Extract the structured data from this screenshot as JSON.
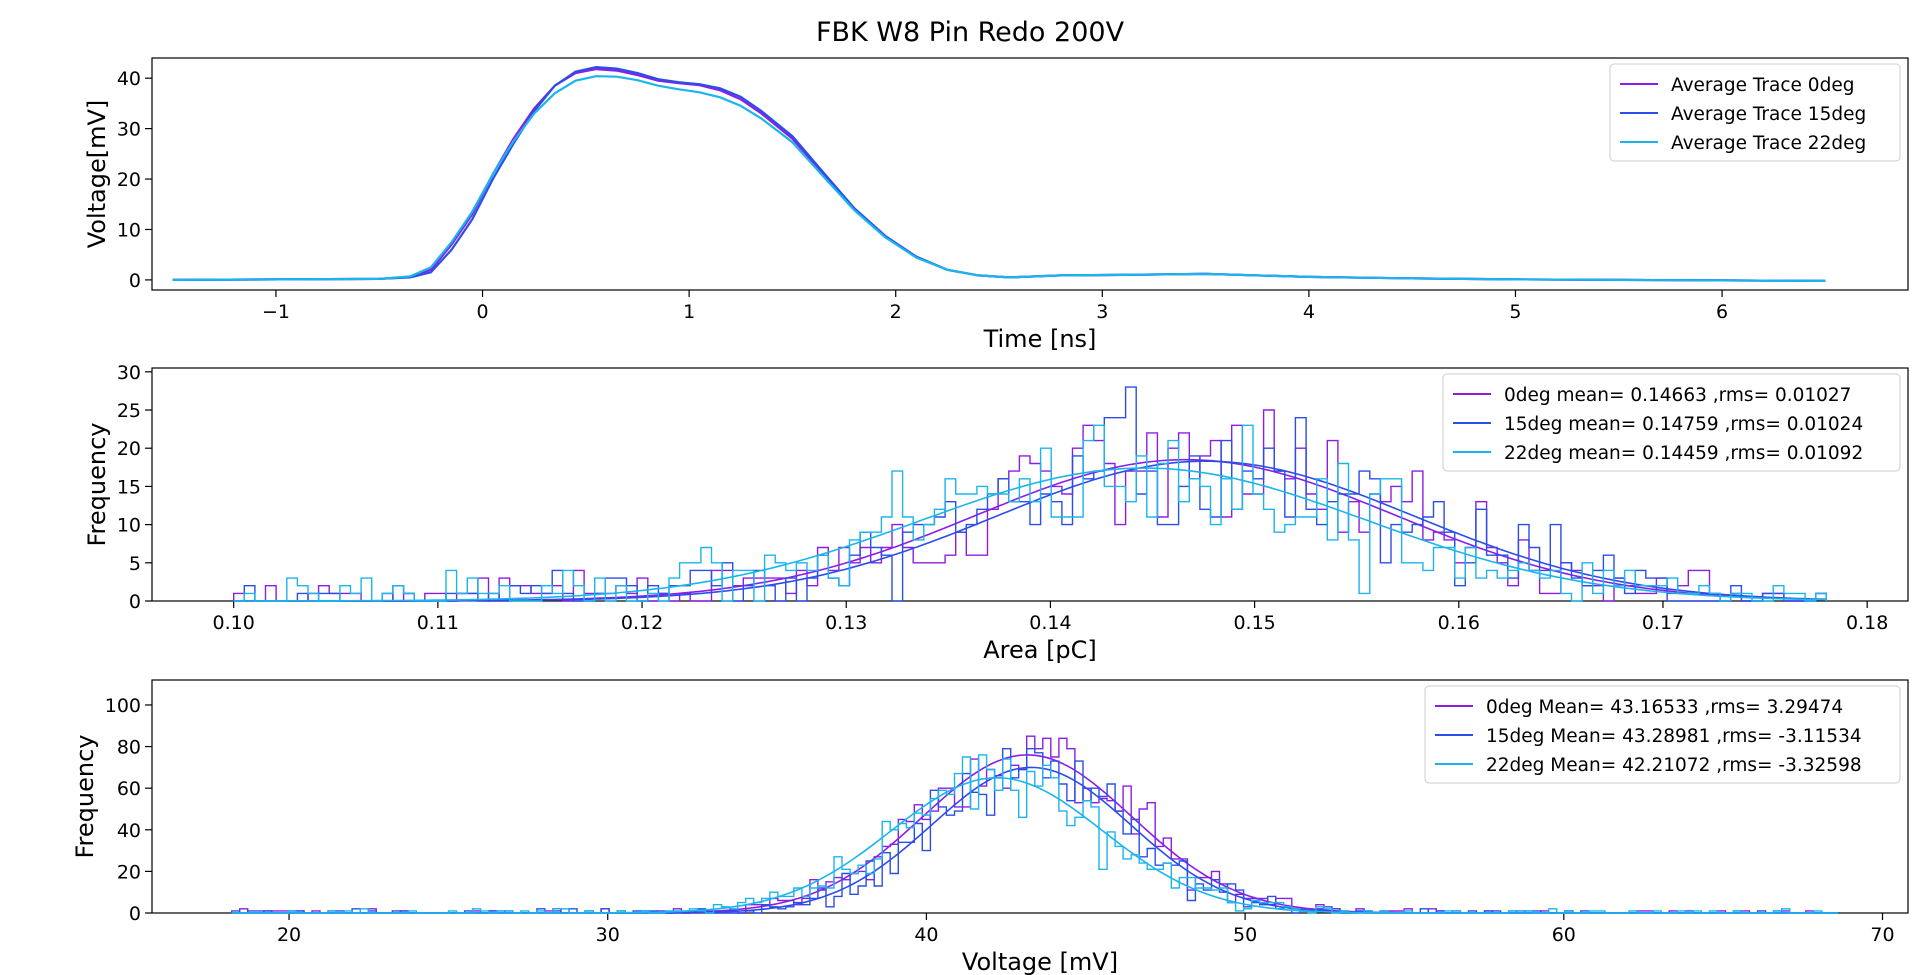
{
  "figure": {
    "title": "FBK W8 Pin Redo 200V"
  },
  "chart_data": [
    {
      "type": "line",
      "xlabel": "Time [ns]",
      "ylabel": "Voltage[mV]",
      "xlim": [
        -1.6,
        6.9
      ],
      "ylim": [
        -2,
        44
      ],
      "xticks": [
        -1,
        0,
        1,
        2,
        3,
        4,
        5,
        6
      ],
      "xtick_labels": [
        "−1",
        "0",
        "1",
        "2",
        "3",
        "4",
        "5",
        "6"
      ],
      "yticks": [
        0,
        10,
        20,
        30,
        40
      ],
      "ytick_labels": [
        "0",
        "10",
        "20",
        "30",
        "40"
      ],
      "legend": "top-right",
      "series": [
        {
          "name": "Average Trace 0deg",
          "color": "#8b1ee6",
          "x": [
            -1.5,
            -0.5,
            -0.35,
            -0.25,
            -0.15,
            -0.05,
            0.05,
            0.15,
            0.25,
            0.35,
            0.45,
            0.55,
            0.65,
            0.75,
            0.85,
            0.95,
            1.05,
            1.15,
            1.25,
            1.35,
            1.5,
            1.65,
            1.8,
            1.95,
            2.1,
            2.25,
            2.4,
            2.55,
            2.8,
            3.1,
            3.5,
            4.0,
            4.5,
            5.0,
            5.5,
            6.0,
            6.5
          ],
          "y": [
            0,
            0.2,
            0.6,
            2,
            7,
            13,
            21,
            28,
            34,
            38.5,
            41,
            41.8,
            41.5,
            40.6,
            39.5,
            39,
            38.6,
            37.6,
            35.8,
            33,
            28,
            21,
            14,
            8.5,
            4.5,
            2,
            0.9,
            0.5,
            0.9,
            1,
            1.2,
            0.6,
            0.3,
            0.1,
            0,
            -0.1,
            -0.2
          ]
        },
        {
          "name": "Average Trace 15deg",
          "color": "#2b4ee8",
          "x": [
            -1.5,
            -0.5,
            -0.35,
            -0.25,
            -0.15,
            -0.05,
            0.05,
            0.15,
            0.25,
            0.35,
            0.45,
            0.55,
            0.65,
            0.75,
            0.85,
            0.95,
            1.05,
            1.15,
            1.25,
            1.35,
            1.5,
            1.65,
            1.8,
            1.95,
            2.1,
            2.25,
            2.4,
            2.55,
            2.8,
            3.1,
            3.5,
            4.0,
            4.5,
            5.0,
            5.5,
            6.0,
            6.5
          ],
          "y": [
            0,
            0.2,
            0.5,
            1.5,
            6,
            12,
            20,
            27,
            33.5,
            38.5,
            41.3,
            42.2,
            41.9,
            41,
            39.8,
            39.2,
            38.8,
            38,
            36.3,
            33.5,
            28.5,
            21.3,
            14.2,
            8.7,
            4.6,
            2,
            0.9,
            0.5,
            0.9,
            1,
            1.2,
            0.6,
            0.3,
            0.1,
            0,
            -0.1,
            -0.2
          ]
        },
        {
          "name": "Average Trace 22deg",
          "color": "#1bb5ec",
          "x": [
            -1.5,
            -0.5,
            -0.35,
            -0.25,
            -0.15,
            -0.05,
            0.05,
            0.15,
            0.25,
            0.35,
            0.45,
            0.55,
            0.65,
            0.75,
            0.85,
            0.95,
            1.05,
            1.15,
            1.25,
            1.35,
            1.5,
            1.65,
            1.8,
            1.95,
            2.1,
            2.25,
            2.4,
            2.55,
            2.8,
            3.1,
            3.5,
            4.0,
            4.5,
            5.0,
            5.5,
            6.0,
            6.5
          ],
          "y": [
            0,
            0.2,
            0.7,
            2.5,
            7.5,
            13.5,
            21,
            27.5,
            33,
            37,
            39.5,
            40.4,
            40.3,
            39.6,
            38.5,
            37.8,
            37.2,
            36.2,
            34.5,
            32,
            27.3,
            20.5,
            13.8,
            8.4,
            4.4,
            2,
            0.9,
            0.5,
            0.9,
            1,
            1.2,
            0.6,
            0.3,
            0.1,
            0,
            -0.1,
            -0.2
          ]
        }
      ]
    },
    {
      "type": "histogram",
      "xlabel": "Area [pC]",
      "ylabel": "Frequency",
      "xlim": [
        0.096,
        0.182
      ],
      "ylim": [
        0,
        30.5
      ],
      "xticks": [
        0.1,
        0.11,
        0.12,
        0.13,
        0.14,
        0.15,
        0.16,
        0.17,
        0.18
      ],
      "xtick_labels": [
        "0.10",
        "0.11",
        "0.12",
        "0.13",
        "0.14",
        "0.15",
        "0.16",
        "0.17",
        "0.18"
      ],
      "yticks": [
        0,
        5,
        10,
        15,
        20,
        25,
        30
      ],
      "ytick_labels": [
        "0",
        "5",
        "10",
        "15",
        "20",
        "25",
        "30"
      ],
      "legend": "top-right",
      "bins": {
        "start": 0.1,
        "end": 0.178,
        "count": 150
      },
      "series": [
        {
          "name": "0deg mean= 0.14663 ,rms= 0.01027",
          "color": "#8b1ee6",
          "mean": 0.14663,
          "rms": 0.01027,
          "fit_peak": 18.5
        },
        {
          "name": "15deg mean= 0.14759 ,rms= 0.01024",
          "color": "#2b4ee8",
          "mean": 0.14759,
          "rms": 0.01024,
          "fit_peak": 18.3
        },
        {
          "name": "22deg mean= 0.14459 ,rms= 0.01092",
          "color": "#1bb5ec",
          "mean": 0.14459,
          "rms": 0.01092,
          "fit_peak": 17.4
        }
      ]
    },
    {
      "type": "histogram",
      "xlabel": "Voltage [mV]",
      "ylabel": "Frequency",
      "xlim": [
        15.7,
        70.8
      ],
      "ylim": [
        0,
        112
      ],
      "xticks": [
        20,
        30,
        40,
        50,
        60,
        70
      ],
      "xtick_labels": [
        "20",
        "30",
        "40",
        "50",
        "60",
        "70"
      ],
      "yticks": [
        0,
        20,
        40,
        60,
        80,
        100
      ],
      "ytick_labels": [
        "0",
        "20",
        "40",
        "60",
        "80",
        "100"
      ],
      "legend": "top-right",
      "bins": {
        "start": 18.2,
        "end": 68.6,
        "count": 200
      },
      "series": [
        {
          "name": "0deg Mean= 43.16533 ,rms= 3.29474",
          "color": "#8b1ee6",
          "mean": 43.16533,
          "rms": 3.29474,
          "fit_peak": 76
        },
        {
          "name": "15deg Mean= 43.28981 ,rms= -3.11534",
          "color": "#2b4ee8",
          "mean": 43.28981,
          "rms": 3.11534,
          "fit_peak": 70
        },
        {
          "name": "22deg Mean= 42.21072 ,rms= -3.32598",
          "color": "#1bb5ec",
          "mean": 42.21072,
          "rms": 3.32598,
          "fit_peak": 65
        }
      ]
    }
  ]
}
